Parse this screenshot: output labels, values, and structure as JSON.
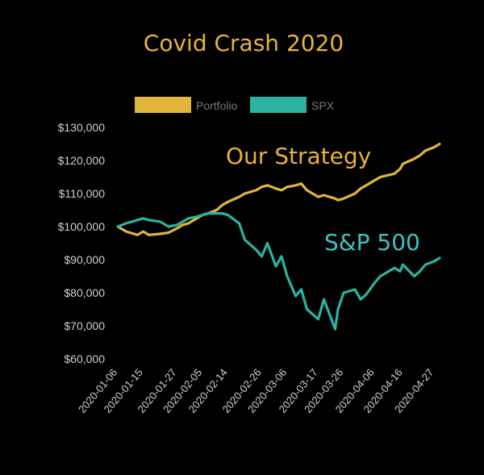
{
  "chart_data": {
    "type": "line",
    "title": "Covid Crash 2020",
    "xlabel": "",
    "ylabel": "",
    "ylim": [
      60000,
      130000
    ],
    "y_ticks": [
      "$60,000",
      "$70,000",
      "$80,000",
      "$90,000",
      "$100,000",
      "$110,000",
      "$120,000",
      "$130,000"
    ],
    "y_tick_values": [
      60000,
      70000,
      80000,
      90000,
      100000,
      110000,
      120000,
      130000
    ],
    "x_ticks": [
      "2020-01-06",
      "2020-01-15",
      "2020-01-27",
      "2020-02-05",
      "2020-02-14",
      "2020-02-26",
      "2020-03-06",
      "2020-03-17",
      "2020-03-26",
      "2020-04-06",
      "2020-04-16",
      "2020-04-27"
    ],
    "x": [
      "2020-01-06",
      "2020-01-09",
      "2020-01-13",
      "2020-01-15",
      "2020-01-17",
      "2020-01-21",
      "2020-01-24",
      "2020-01-27",
      "2020-01-29",
      "2020-01-31",
      "2020-02-03",
      "2020-02-05",
      "2020-02-07",
      "2020-02-10",
      "2020-02-12",
      "2020-02-14",
      "2020-02-18",
      "2020-02-20",
      "2020-02-24",
      "2020-02-26",
      "2020-02-28",
      "2020-03-02",
      "2020-03-04",
      "2020-03-06",
      "2020-03-09",
      "2020-03-11",
      "2020-03-13",
      "2020-03-17",
      "2020-03-19",
      "2020-03-23",
      "2020-03-24",
      "2020-03-26",
      "2020-03-30",
      "2020-04-01",
      "2020-04-03",
      "2020-04-06",
      "2020-04-08",
      "2020-04-13",
      "2020-04-15",
      "2020-04-16",
      "2020-04-20",
      "2020-04-22",
      "2020-04-24",
      "2020-04-27",
      "2020-04-29"
    ],
    "series": [
      {
        "name": "Portfolio",
        "color": "#e0b53a",
        "values": [
          100000,
          98500,
          97500,
          98500,
          97500,
          97800,
          98200,
          99500,
          100500,
          101000,
          102500,
          103500,
          104000,
          105000,
          106500,
          107500,
          109000,
          110000,
          111000,
          112000,
          112500,
          111500,
          111000,
          112000,
          112500,
          113000,
          111000,
          109000,
          109500,
          108500,
          108000,
          108500,
          110000,
          111500,
          112500,
          114000,
          115000,
          116000,
          117500,
          119000,
          120500,
          121500,
          123000,
          124000,
          125000
        ]
      },
      {
        "name": "SPX",
        "color": "#2ab3a1",
        "values": [
          100000,
          101000,
          102000,
          102500,
          102000,
          101500,
          100000,
          100500,
          101500,
          102500,
          103000,
          103500,
          104000,
          104000,
          104000,
          103500,
          101000,
          96000,
          93000,
          91000,
          95000,
          88000,
          91000,
          85000,
          79000,
          81000,
          75000,
          72000,
          78000,
          69000,
          75000,
          80000,
          81000,
          78000,
          79500,
          83000,
          85000,
          87500,
          86500,
          88500,
          85000,
          86500,
          88500,
          89500,
          90500
        ]
      }
    ],
    "legend": "top-center",
    "grid": false,
    "annotations": [
      {
        "text": "Our Strategy",
        "color": "#e9b33b"
      },
      {
        "text": "S&P 500",
        "color": "#3cc6c4"
      }
    ]
  }
}
